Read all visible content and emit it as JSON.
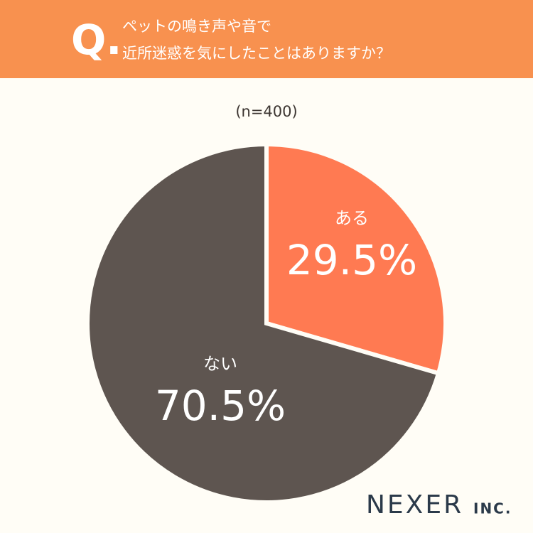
{
  "header": {
    "question_label": "Q.",
    "title_lines": [
      "ペットの鳴き声や音で",
      "近所迷惑を気にしたことはありますか？"
    ]
  },
  "chart_data": {
    "type": "pie",
    "subtitle": "(n=400)",
    "categories": [
      "ある",
      "ない"
    ],
    "values": [
      29.5,
      70.5
    ],
    "value_labels": [
      "29.5%",
      "70.5%"
    ],
    "colors": [
      "#ff7a52",
      "#5e5550"
    ]
  },
  "logo": {
    "name": "NEXER",
    "suffix": "INC."
  }
}
